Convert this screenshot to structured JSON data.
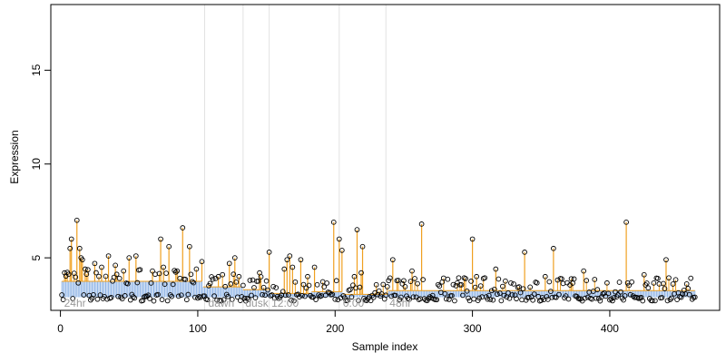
{
  "chart_data": {
    "type": "scatter",
    "title": "",
    "xlabel": "Sample index",
    "ylabel": "Expression",
    "xlim": [
      -7,
      480
    ],
    "ylim": [
      2.2,
      18.5
    ],
    "x_ticks": [
      0,
      100,
      200,
      300,
      400
    ],
    "y_ticks": [
      5,
      10,
      15
    ],
    "grid": false,
    "baselines": [
      {
        "from": 1,
        "to": 103,
        "value": 3.75
      },
      {
        "from": 104,
        "to": 132,
        "value": 3.45
      },
      {
        "from": 133,
        "to": 152,
        "value": 3.3
      },
      {
        "from": 153,
        "to": 182,
        "value": 3.1
      },
      {
        "from": 183,
        "to": 205,
        "value": 3.2
      },
      {
        "from": 206,
        "to": 238,
        "value": 3.05
      },
      {
        "from": 239,
        "to": 462,
        "value": 3.25
      }
    ],
    "region_boundaries": [
      105,
      133,
      152,
      203,
      237
    ],
    "region_labels": [
      {
        "label": "24hr",
        "x": 2
      },
      {
        "label": "dawn",
        "x": 107
      },
      {
        "label": "dusk",
        "x": 134
      },
      {
        "label": "12:00",
        "x": 153
      },
      {
        "label": "0:00",
        "x": 205
      },
      {
        "label": "48hr",
        "x": 239
      }
    ],
    "highlights": [
      {
        "x": 3,
        "y": 4.2
      },
      {
        "x": 7,
        "y": 5.5
      },
      {
        "x": 8,
        "y": 6.0
      },
      {
        "x": 12,
        "y": 7.0
      },
      {
        "x": 14,
        "y": 5.5
      },
      {
        "x": 15,
        "y": 5.0
      },
      {
        "x": 16,
        "y": 4.9
      },
      {
        "x": 18,
        "y": 4.4
      },
      {
        "x": 25,
        "y": 4.7
      },
      {
        "x": 30,
        "y": 4.5
      },
      {
        "x": 35,
        "y": 5.1
      },
      {
        "x": 40,
        "y": 4.6
      },
      {
        "x": 46,
        "y": 4.3
      },
      {
        "x": 50,
        "y": 5.0
      },
      {
        "x": 55,
        "y": 5.1
      },
      {
        "x": 67,
        "y": 4.3
      },
      {
        "x": 73,
        "y": 6.0
      },
      {
        "x": 75,
        "y": 4.5
      },
      {
        "x": 79,
        "y": 5.6
      },
      {
        "x": 85,
        "y": 4.3
      },
      {
        "x": 89,
        "y": 6.6
      },
      {
        "x": 94,
        "y": 5.6
      },
      {
        "x": 103,
        "y": 4.8
      },
      {
        "x": 115,
        "y": 4.0
      },
      {
        "x": 123,
        "y": 4.7
      },
      {
        "x": 127,
        "y": 5.0
      },
      {
        "x": 130,
        "y": 4.0
      },
      {
        "x": 145,
        "y": 4.2
      },
      {
        "x": 152,
        "y": 5.3
      },
      {
        "x": 163,
        "y": 4.4
      },
      {
        "x": 165,
        "y": 4.9
      },
      {
        "x": 167,
        "y": 5.1
      },
      {
        "x": 169,
        "y": 4.5
      },
      {
        "x": 175,
        "y": 4.9
      },
      {
        "x": 180,
        "y": 4.0
      },
      {
        "x": 185,
        "y": 4.5
      },
      {
        "x": 199,
        "y": 6.9
      },
      {
        "x": 203,
        "y": 6.0
      },
      {
        "x": 205,
        "y": 5.4
      },
      {
        "x": 214,
        "y": 4.0
      },
      {
        "x": 216,
        "y": 6.5
      },
      {
        "x": 219,
        "y": 4.2
      },
      {
        "x": 220,
        "y": 5.6
      },
      {
        "x": 242,
        "y": 4.9
      },
      {
        "x": 256,
        "y": 4.3
      },
      {
        "x": 263,
        "y": 6.8
      },
      {
        "x": 300,
        "y": 6.0
      },
      {
        "x": 303,
        "y": 4.0
      },
      {
        "x": 317,
        "y": 4.4
      },
      {
        "x": 338,
        "y": 5.3
      },
      {
        "x": 353,
        "y": 4.0
      },
      {
        "x": 359,
        "y": 5.5
      },
      {
        "x": 381,
        "y": 4.3
      },
      {
        "x": 412,
        "y": 6.9
      },
      {
        "x": 425,
        "y": 4.1
      },
      {
        "x": 441,
        "y": 4.9
      }
    ]
  }
}
